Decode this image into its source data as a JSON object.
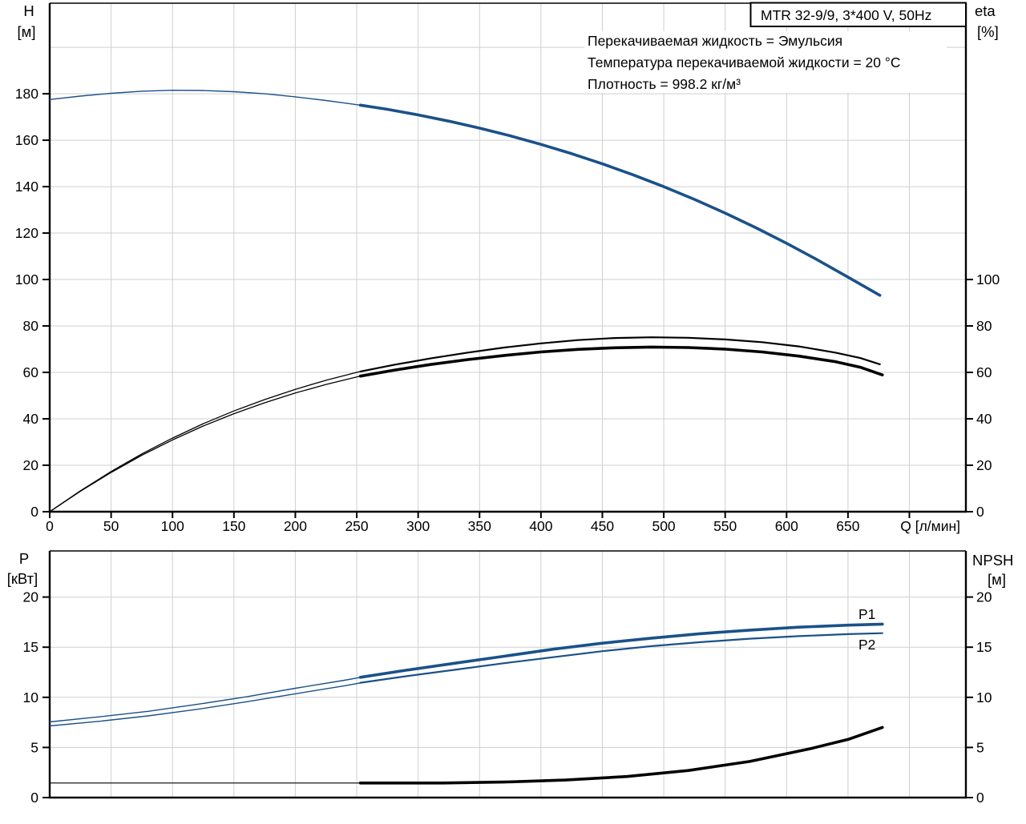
{
  "title_box": {
    "text": "MTR 32-9/9, 3*400 V, 50Hz"
  },
  "annotations": [
    "Перекачиваемая жидкость = Эмульсия",
    "Температура перекачиваемой жидкости = 20 °C",
    "Плотность = 998.2 кг/м³"
  ],
  "colors": {
    "curve_blue": "#1a5189",
    "label_blue": "#1f5fa6",
    "curve_black": "#000000",
    "grid": "#cfcfcf",
    "axis": "#000000",
    "background": "#ffffff"
  },
  "labels": {
    "h_axis_1": "H",
    "h_axis_2": "[м]",
    "eta_axis_1": "eta",
    "eta_axis_2": "[%]",
    "q_axis": "Q [л/мин]",
    "p_axis_1": "P",
    "p_axis_2": "[кВт]",
    "npsh_axis_1": "NPSH",
    "npsh_axis_2": "[м]",
    "p1": "P1",
    "p2": "P2"
  },
  "chart_data": [
    {
      "type": "line",
      "name": "head-efficiency-chart",
      "x_axis": {
        "label": "Q [л/мин]",
        "min": 0,
        "max": 746,
        "tick_step": 50,
        "tick_max": 700,
        "labeled_ticks": [
          0,
          50,
          100,
          150,
          200,
          250,
          300,
          350,
          400,
          450,
          500,
          550,
          600,
          650
        ]
      },
      "y_left": {
        "label": "H [м]",
        "min": 0,
        "max": 219,
        "tick_step": 20,
        "tick_max": 180
      },
      "y_right": {
        "label": "eta [%]",
        "min": 0,
        "max": 219,
        "tick_step": 20,
        "tick_max": 100
      },
      "grid": {
        "x_step": 50,
        "y_step": 20
      },
      "series": [
        {
          "name": "h-curve-thin",
          "color": "#1a5189",
          "width": 1.4,
          "points": [
            [
              0,
              177.5
            ],
            [
              25,
              179.0
            ],
            [
              50,
              180.2
            ],
            [
              75,
              181.1
            ],
            [
              100,
              181.5
            ],
            [
              125,
              181.4
            ],
            [
              150,
              180.9
            ],
            [
              175,
              180.0
            ],
            [
              200,
              178.7
            ],
            [
              225,
              177.1
            ],
            [
              250,
              175.3
            ],
            [
              260,
              174.5
            ]
          ]
        },
        {
          "name": "h-curve-duty",
          "color": "#1a5189",
          "width": 3.6,
          "points": [
            [
              253,
              175.1
            ],
            [
              275,
              173.3
            ],
            [
              300,
              170.9
            ],
            [
              325,
              168.2
            ],
            [
              350,
              165.2
            ],
            [
              375,
              161.9
            ],
            [
              400,
              158.2
            ],
            [
              425,
              154.2
            ],
            [
              450,
              149.8
            ],
            [
              475,
              145.1
            ],
            [
              500,
              140.0
            ],
            [
              525,
              134.5
            ],
            [
              550,
              128.6
            ],
            [
              575,
              122.3
            ],
            [
              600,
              115.6
            ],
            [
              625,
              108.5
            ],
            [
              650,
              101.0
            ],
            [
              676,
              93.2
            ]
          ]
        },
        {
          "name": "eta-curve-upper-thin",
          "color": "#000000",
          "width": 1.3,
          "points": [
            [
              0,
              0
            ],
            [
              25,
              9.0
            ],
            [
              50,
              17.3
            ],
            [
              75,
              24.9
            ],
            [
              100,
              31.7
            ],
            [
              125,
              37.9
            ],
            [
              150,
              43.4
            ],
            [
              175,
              48.3
            ],
            [
              200,
              52.7
            ],
            [
              225,
              56.6
            ],
            [
              250,
              60.0
            ],
            [
              258,
              61.0
            ]
          ]
        },
        {
          "name": "eta-curve-upper-duty",
          "color": "#000000",
          "width": 2.2,
          "points": [
            [
              253,
              60.4
            ],
            [
              280,
              63.2
            ],
            [
              310,
              66.0
            ],
            [
              340,
              68.5
            ],
            [
              370,
              70.7
            ],
            [
              400,
              72.5
            ],
            [
              430,
              73.9
            ],
            [
              460,
              74.8
            ],
            [
              490,
              75.1
            ],
            [
              520,
              74.9
            ],
            [
              550,
              74.2
            ],
            [
              580,
              73.0
            ],
            [
              610,
              71.2
            ],
            [
              640,
              68.5
            ],
            [
              660,
              66.2
            ],
            [
              676,
              63.5
            ]
          ]
        },
        {
          "name": "eta-curve-lower-thin",
          "color": "#000000",
          "width": 1.3,
          "points": [
            [
              0,
              0
            ],
            [
              25,
              8.8
            ],
            [
              50,
              16.9
            ],
            [
              75,
              24.3
            ],
            [
              100,
              30.9
            ],
            [
              125,
              36.9
            ],
            [
              150,
              42.2
            ],
            [
              175,
              46.9
            ],
            [
              200,
              51.1
            ],
            [
              225,
              54.8
            ],
            [
              250,
              58.0
            ],
            [
              256,
              58.7
            ]
          ]
        },
        {
          "name": "eta-curve-lower-duty",
          "color": "#000000",
          "width": 3.6,
          "points": [
            [
              253,
              58.4
            ],
            [
              280,
              60.9
            ],
            [
              310,
              63.4
            ],
            [
              340,
              65.5
            ],
            [
              370,
              67.3
            ],
            [
              400,
              68.8
            ],
            [
              430,
              69.9
            ],
            [
              460,
              70.6
            ],
            [
              490,
              70.9
            ],
            [
              520,
              70.7
            ],
            [
              550,
              70.0
            ],
            [
              580,
              68.8
            ],
            [
              610,
              67.0
            ],
            [
              640,
              64.6
            ],
            [
              660,
              62.2
            ],
            [
              678,
              58.9
            ]
          ]
        }
      ]
    },
    {
      "type": "line",
      "name": "power-npsh-chart",
      "x_axis": {
        "label": "",
        "min": 0,
        "max": 746,
        "tick_step": 50,
        "tick_max": -1,
        "labeled_ticks": []
      },
      "y_left": {
        "label": "P [кВт]",
        "min": 0,
        "max": 24.6,
        "tick_step": 5,
        "tick_max": 20
      },
      "y_right": {
        "label": "NPSH [м]",
        "min": 0,
        "max": 24.6,
        "tick_step": 5,
        "tick_max": 20
      },
      "grid": {
        "x_step": 50,
        "y_step": 5
      },
      "series": [
        {
          "name": "p1-curve-thin",
          "color": "#1a5189",
          "width": 1.4,
          "points": [
            [
              0,
              7.55
            ],
            [
              40,
              8.05
            ],
            [
              80,
              8.6
            ],
            [
              120,
              9.3
            ],
            [
              160,
              10.05
            ],
            [
              200,
              10.9
            ],
            [
              240,
              11.7
            ],
            [
              256,
              12.05
            ]
          ]
        },
        {
          "name": "p1-curve-duty",
          "color": "#1a5189",
          "width": 3.6,
          "points": [
            [
              253,
              12.0
            ],
            [
              290,
              12.7
            ],
            [
              330,
              13.4
            ],
            [
              370,
              14.1
            ],
            [
              410,
              14.8
            ],
            [
              450,
              15.4
            ],
            [
              490,
              15.9
            ],
            [
              530,
              16.35
            ],
            [
              570,
              16.7
            ],
            [
              610,
              17.0
            ],
            [
              650,
              17.2
            ],
            [
              678,
              17.3
            ]
          ]
        },
        {
          "name": "p2-curve-thin",
          "color": "#1a5189",
          "width": 1.4,
          "points": [
            [
              0,
              7.15
            ],
            [
              40,
              7.6
            ],
            [
              80,
              8.15
            ],
            [
              120,
              8.8
            ],
            [
              160,
              9.55
            ],
            [
              200,
              10.35
            ],
            [
              240,
              11.15
            ],
            [
              256,
              11.5
            ]
          ]
        },
        {
          "name": "p2-curve-duty",
          "color": "#1a5189",
          "width": 2.2,
          "points": [
            [
              253,
              11.45
            ],
            [
              290,
              12.1
            ],
            [
              330,
              12.75
            ],
            [
              370,
              13.4
            ],
            [
              410,
              14.0
            ],
            [
              450,
              14.6
            ],
            [
              490,
              15.1
            ],
            [
              530,
              15.5
            ],
            [
              570,
              15.85
            ],
            [
              610,
              16.1
            ],
            [
              650,
              16.3
            ],
            [
              678,
              16.4
            ]
          ]
        },
        {
          "name": "npsh-curve-thin",
          "color": "#000000",
          "width": 1.2,
          "points": [
            [
              0,
              1.45
            ],
            [
              120,
              1.45
            ],
            [
              256,
              1.45
            ]
          ]
        },
        {
          "name": "npsh-curve-duty",
          "color": "#000000",
          "width": 3.6,
          "points": [
            [
              253,
              1.45
            ],
            [
              320,
              1.45
            ],
            [
              370,
              1.55
            ],
            [
              420,
              1.75
            ],
            [
              470,
              2.1
            ],
            [
              520,
              2.7
            ],
            [
              570,
              3.6
            ],
            [
              620,
              4.9
            ],
            [
              650,
              5.8
            ],
            [
              678,
              7.0
            ]
          ]
        }
      ]
    }
  ]
}
